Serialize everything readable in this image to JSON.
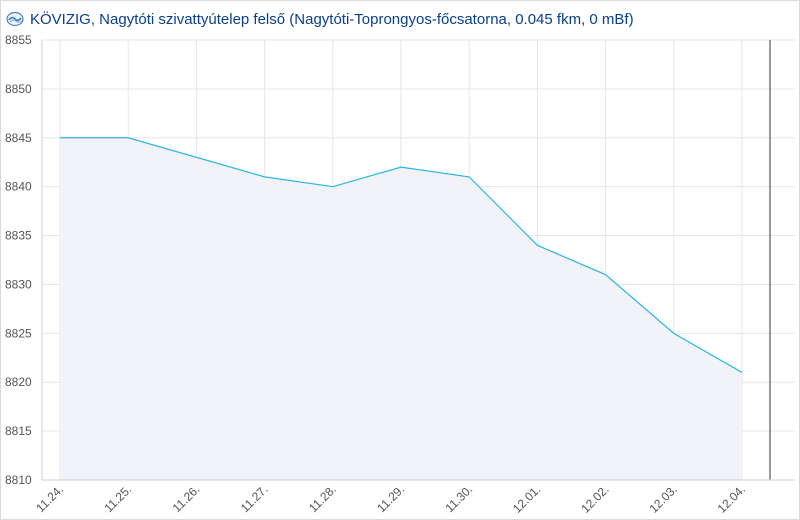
{
  "header": {
    "title": "KÖVIZIG, Nagytóti szivattyútelep felső (Nagytóti-Toprongyos-főcsatorna, 0.045 fkm, 0 mBf)",
    "logo_icon": "kovizig-logo-icon"
  },
  "colors": {
    "line": "#29b6e6",
    "area_fill": "#f1f3f8",
    "grid": "#e6e6e6",
    "title": "#0b3f8b",
    "now_marker": "#333333"
  },
  "chart_data": {
    "type": "area",
    "title": "KÖVIZIG, Nagytóti szivattyútelep felső (Nagytóti-Toprongyos-főcsatorna, 0.045 fkm, 0 mBf)",
    "xlabel": "",
    "ylabel": "",
    "ylim": [
      8810,
      8855
    ],
    "yticks": [
      8810,
      8815,
      8820,
      8825,
      8830,
      8835,
      8840,
      8845,
      8850,
      8855
    ],
    "categories": [
      "11.24.",
      "11.25.",
      "11.26.",
      "11.27.",
      "11.28.",
      "11.29.",
      "11.30.",
      "12.01.",
      "12.02.",
      "12.03.",
      "12.04."
    ],
    "x": [
      "11.24.",
      "11.25.",
      "11.27.",
      "11.28.",
      "11.29.",
      "11.30.",
      "12.01.",
      "12.02.",
      "12.03.",
      "12.04."
    ],
    "values": [
      8845,
      8845,
      8841,
      8840,
      8842,
      8841,
      8834,
      8831,
      8825,
      8821
    ],
    "grid": true,
    "legend": "none"
  }
}
